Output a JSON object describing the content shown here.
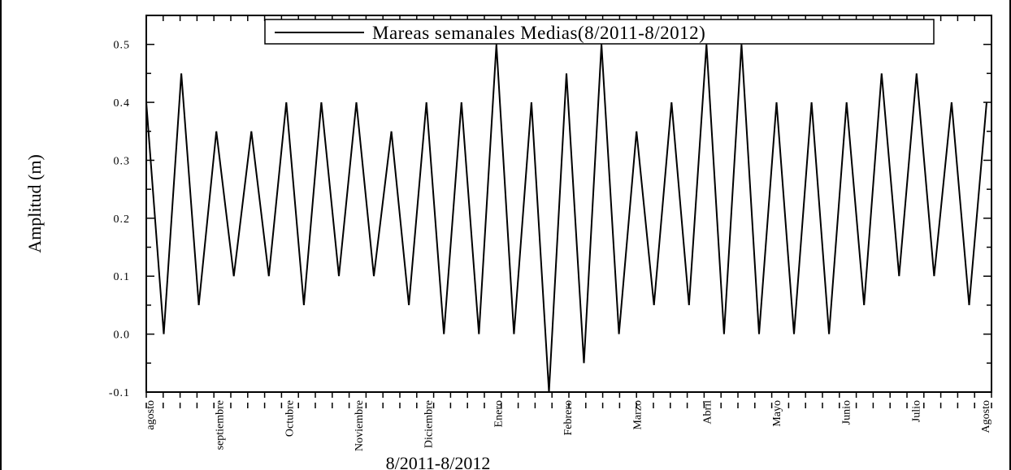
{
  "chart_data": {
    "type": "line",
    "title": "",
    "xlabel": "8/2011-8/2012",
    "ylabel": "Amplitud (m)",
    "ylim": [
      -0.1,
      0.55
    ],
    "yticks": [
      "-0.1",
      "0.0",
      "0.1",
      "0.2",
      "0.3",
      "0.4",
      "0.5"
    ],
    "month_labels": [
      "agosto",
      "septiembre",
      "Octubre",
      "Noviembre",
      "Diciembre",
      "Enero",
      "Febrero",
      "Marzo",
      "Abril",
      "Mayo",
      "Junio",
      "Julio",
      "Agosto"
    ],
    "legend_position": "top-right",
    "grid": false,
    "series": [
      {
        "name": "Mareas semanales Medias(8/2011-8/2012)",
        "color": "#000000",
        "values": [
          0.4,
          0.0,
          0.45,
          0.05,
          0.35,
          0.1,
          0.35,
          0.1,
          0.4,
          0.05,
          0.4,
          0.1,
          0.4,
          0.1,
          0.35,
          0.05,
          0.4,
          0.0,
          0.4,
          0.0,
          0.5,
          0.0,
          0.4,
          -0.1,
          0.45,
          -0.05,
          0.5,
          0.0,
          0.35,
          0.05,
          0.4,
          0.05,
          0.5,
          0.0,
          0.5,
          0.0,
          0.4,
          0.0,
          0.4,
          0.0,
          0.4,
          0.05,
          0.45,
          0.1,
          0.45,
          0.1,
          0.4,
          0.05,
          0.4
        ]
      }
    ]
  }
}
